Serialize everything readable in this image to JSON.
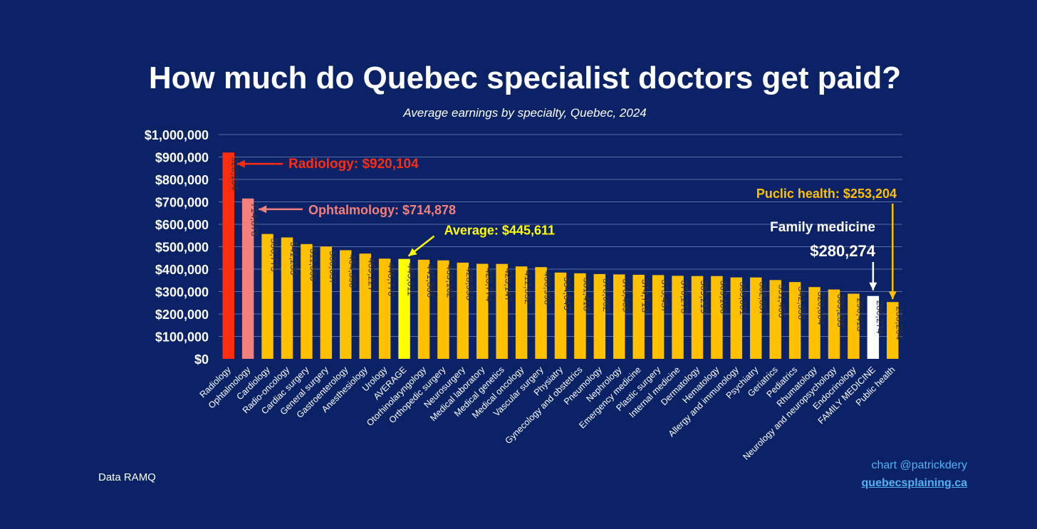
{
  "chart_data": {
    "type": "bar",
    "title": "How much do Quebec specialist doctors get paid?",
    "subtitle": "Average earnings by specialty, Quebec, 2024",
    "xlabel": "",
    "ylabel": "",
    "ylim": [
      0,
      1000000
    ],
    "yticks": [
      0,
      100000,
      200000,
      300000,
      400000,
      500000,
      600000,
      700000,
      800000,
      900000,
      1000000
    ],
    "ytick_labels": [
      "$0",
      "$100,000",
      "$200,000",
      "$300,000",
      "$400,000",
      "$500,000",
      "$600,000",
      "$700,000",
      "$800,000",
      "$900,000",
      "$1,000,000"
    ],
    "grid": true,
    "categories": [
      "Radiology",
      "Ophtalmology",
      "Cardiology",
      "Radio-oncology",
      "Cardiac surgery",
      "General surgery",
      "Gastroenterology",
      "Anesthesiology",
      "Urology",
      "AVERAGE",
      "Otorhinolaryngology",
      "Orthopedic surgery",
      "Neurosurgery",
      "Medical laboratory",
      "Medical genetics",
      "Medical oncology",
      "Vascular surgery",
      "Physiatry",
      "Gynecology and obstetrics",
      "Pneumology",
      "Nephrology",
      "Emergency medicine",
      "Plastic surgery",
      "Internal medicine",
      "Dermatology",
      "Hematology",
      "Allergy and immunology",
      "Psychiatry",
      "Geriatrics",
      "Pediatrics",
      "Rhumatology",
      "Neurology and neuropsychology",
      "Endocrinology",
      "FAMILY MEDICINE",
      "Public health"
    ],
    "values": [
      920104,
      714878,
      556773,
      541233,
      511666,
      500637,
      484390,
      469227,
      446770,
      445611,
      441886,
      439162,
      428953,
      423774,
      423147,
      412032,
      408998,
      384643,
      381418,
      378062,
      376409,
      374713,
      373457,
      370273,
      369219,
      369106,
      363001,
      362857,
      351406,
      342358,
      320004,
      309235,
      290413,
      280274,
      253204
    ],
    "value_labels": [
      "920,104",
      "714,878",
      "556,773",
      "541,233",
      "511,666",
      "500,637",
      "484,390",
      "469,227",
      "446,770",
      "445,611",
      "441,886",
      "439,162",
      "428,953",
      "423,774",
      "423,147",
      "412,032",
      "408,998",
      "384,643",
      "381,418",
      "378,062",
      "376,409",
      "374,713",
      "373,457",
      "370,273",
      "369,219",
      "369,106",
      "363,001",
      "362,857",
      "351,406",
      "342,358",
      "320,004",
      "309,235",
      "290,413",
      "280,274",
      "253,204"
    ],
    "highlight_colors": {
      "Radiology": "#ff2d10",
      "Ophtalmology": "#f47f7b",
      "AVERAGE": "#ffff00",
      "FAMILY MEDICINE": "#ffffff",
      "default": "#ffc000"
    },
    "annotations": [
      {
        "category": "Radiology",
        "text": "Radiology: $920,104",
        "color": "#ff2d10"
      },
      {
        "category": "Ophtalmology",
        "text": "Ophtalmology: $714,878",
        "color": "#f47f7b"
      },
      {
        "category": "AVERAGE",
        "text": "Average: $445,611",
        "color": "#ffff00"
      },
      {
        "category": "FAMILY MEDICINE",
        "text": "Family medicine",
        "text2": "$280,274",
        "color": "#ffffff"
      },
      {
        "category": "Public health",
        "text": "Puclic health: $253,204",
        "color": "#ffc000"
      }
    ]
  },
  "source_text": "Data RAMQ",
  "credit": {
    "author": "chart @patrickdery",
    "site": "quebecsplaining.ca"
  },
  "colors": {
    "background": "#0b2366",
    "grid": "#5a6fa6",
    "axis_text": "#ffffff",
    "link": "#4fb3f5"
  }
}
